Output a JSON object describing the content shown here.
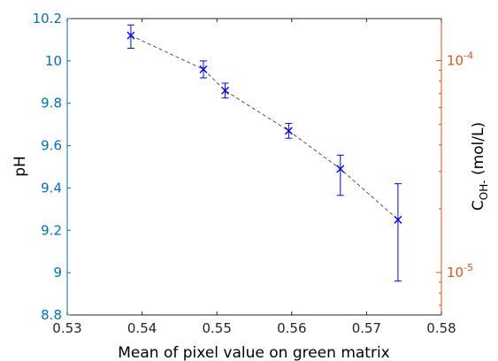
{
  "chart_data": {
    "type": "scatter",
    "title": "",
    "xlabel": "Mean of pixel value on green matrix",
    "ylabel": "pH",
    "ylabel_right": {
      "base": "C",
      "subscript": "OH-",
      "unit": " (mol/L)"
    },
    "xlim": [
      0.53,
      0.58
    ],
    "ylim": [
      8.8,
      10.2
    ],
    "x_ticks": [
      "0.53",
      "0.54",
      "0.55",
      "0.56",
      "0.57",
      "0.58"
    ],
    "y_ticks": [
      "8.8",
      "9",
      "9.2",
      "9.4",
      "9.6",
      "9.8",
      "10",
      "10.2"
    ],
    "right_axis": {
      "scale": "log",
      "ylim": [
        6.3e-06,
        0.000158
      ],
      "tick_labels": [
        {
          "value": 0.0001,
          "base": "10",
          "exp": "-4"
        },
        {
          "value": 1e-05,
          "base": "10",
          "exp": "-5"
        }
      ]
    },
    "grid": false,
    "legend": "none",
    "series": [
      {
        "marker": "x",
        "errorbars": true,
        "fit_line": "dashed",
        "x": [
          0.5385,
          0.5482,
          0.5511,
          0.5596,
          0.5665,
          0.5742
        ],
        "y": [
          10.12,
          9.96,
          9.86,
          9.67,
          9.49,
          9.25
        ],
        "err_low": [
          0.06,
          0.04,
          0.035,
          0.035,
          0.125,
          0.29
        ],
        "err_high": [
          0.05,
          0.04,
          0.035,
          0.035,
          0.065,
          0.17
        ]
      }
    ],
    "colors": {
      "left_axis": "#0072BD",
      "right_axis": "#D95319",
      "data": "#0000FF",
      "fit": "#404040",
      "frame": "#262626"
    }
  }
}
